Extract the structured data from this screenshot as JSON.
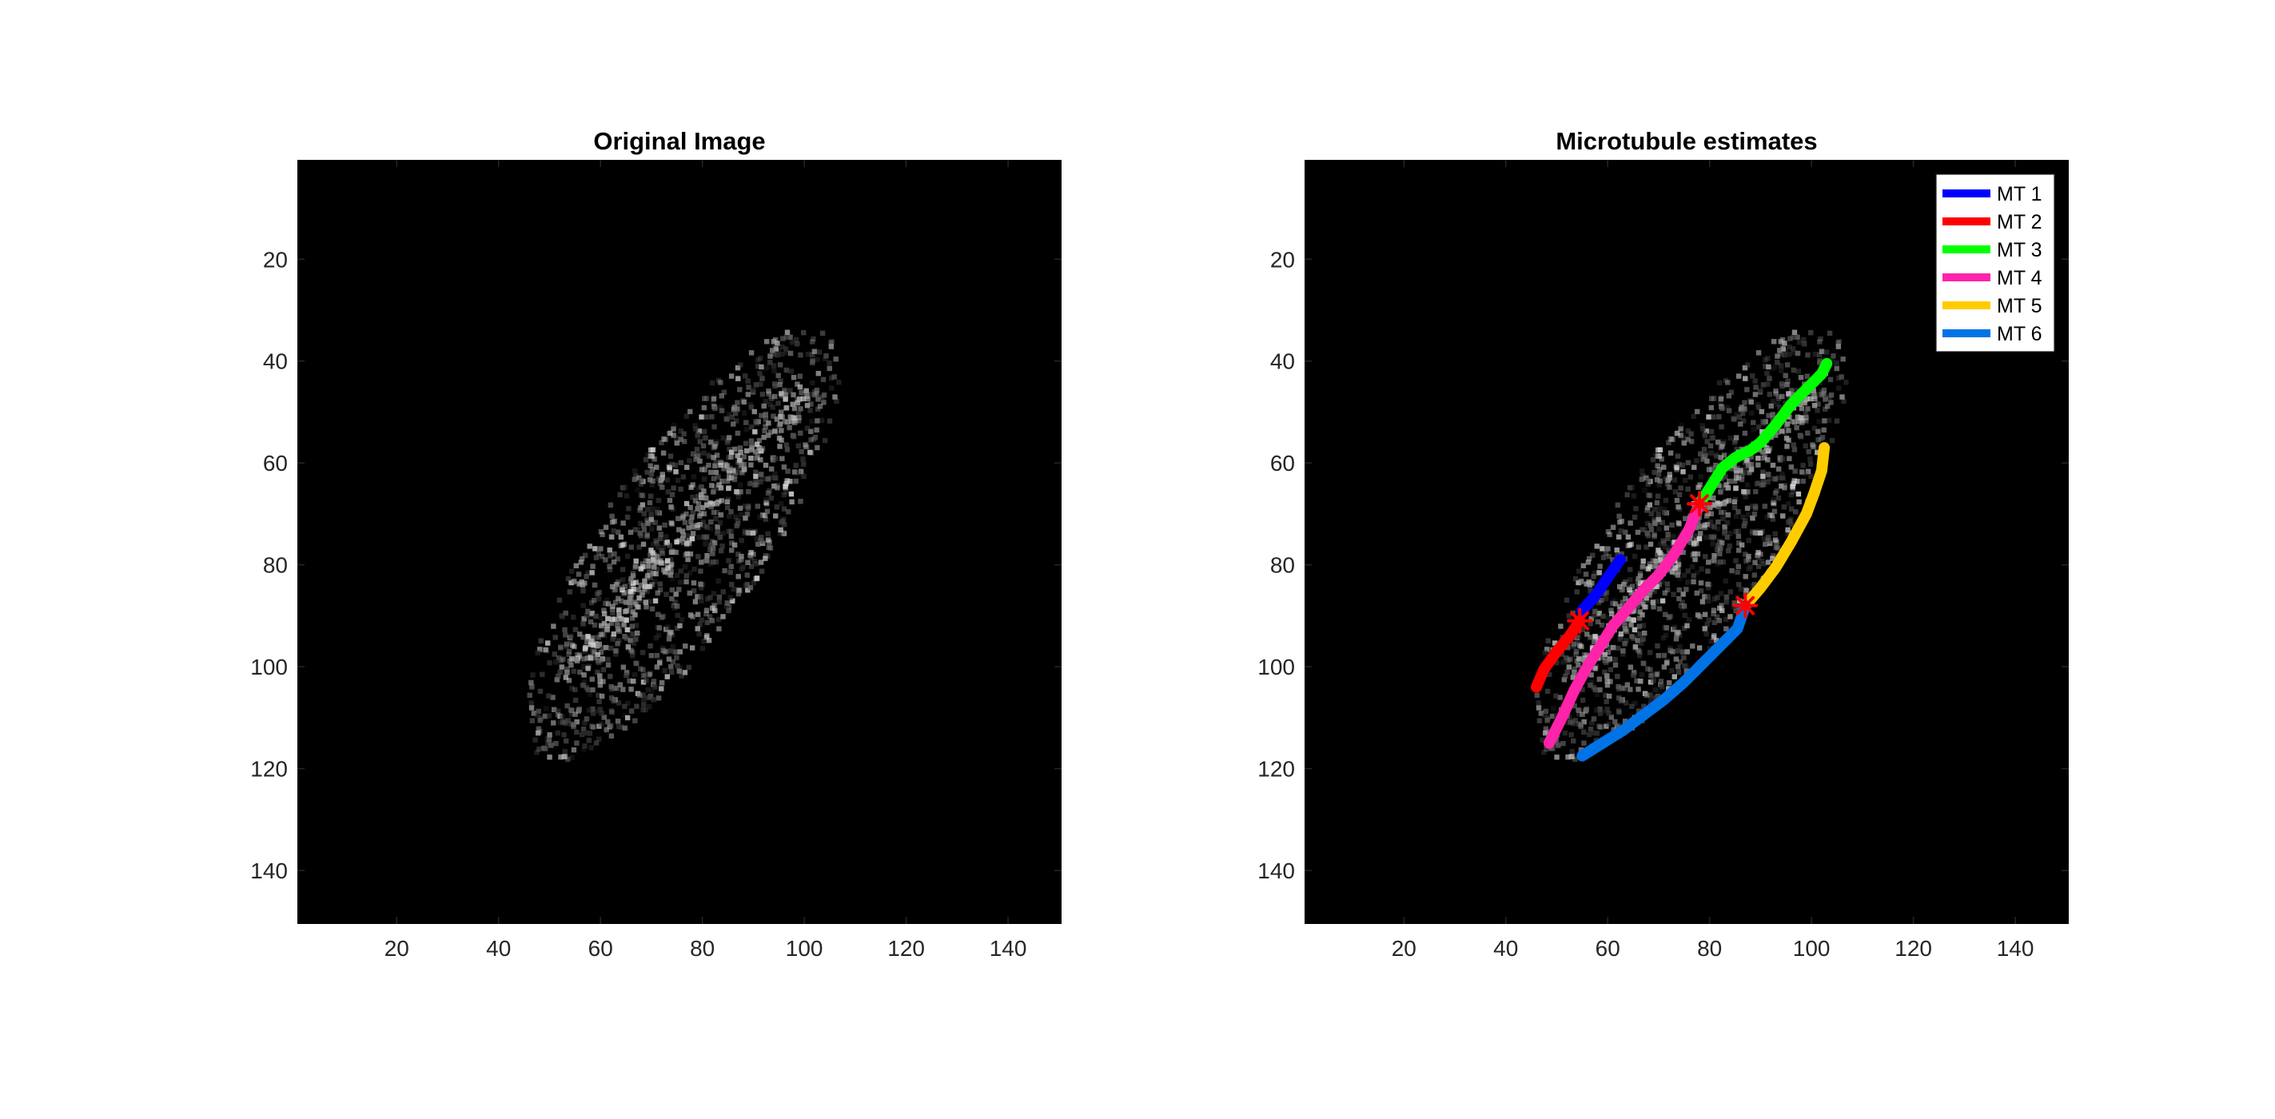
{
  "figure": {
    "background": "#ffffff"
  },
  "chart_data": [
    {
      "type": "heatmap",
      "title": "Original Image",
      "xlim": [
        0.5,
        150.5
      ],
      "ylim": [
        0.5,
        150.5
      ],
      "y_reversed": true,
      "xticks": [
        20,
        40,
        60,
        80,
        100,
        120,
        140
      ],
      "yticks": [
        20,
        40,
        60,
        80,
        100,
        120,
        140
      ],
      "colormap": "gray",
      "background": "#000000",
      "intensity_description": "noisy grayscale cell; bright elongated ellipse from ~(45,120) to ~(105,32)",
      "series": []
    },
    {
      "type": "line",
      "title": "Microtubule estimates",
      "xlim": [
        0.5,
        150.5
      ],
      "ylim": [
        0.5,
        150.5
      ],
      "y_reversed": true,
      "xticks": [
        20,
        40,
        60,
        80,
        100,
        120,
        140
      ],
      "yticks": [
        20,
        40,
        60,
        80,
        100,
        120,
        140
      ],
      "legend_position": "top-right",
      "series": [
        {
          "name": "MT 1",
          "color": "#0000ff",
          "x": [
            55,
            58,
            60,
            62.5
          ],
          "y": [
            89,
            85.5,
            82.5,
            79
          ]
        },
        {
          "name": "MT 2",
          "color": "#ff0000",
          "x": [
            46,
            47.5,
            50,
            52.5,
            54.5
          ],
          "y": [
            104,
            100.5,
            97,
            94,
            91
          ]
        },
        {
          "name": "MT 3",
          "color": "#00ff00",
          "x": [
            78,
            80,
            82.5,
            85,
            88,
            90,
            93,
            96,
            99,
            102,
            103
          ],
          "y": [
            68,
            65,
            61,
            59,
            57.5,
            56,
            52.5,
            48.5,
            45.5,
            42.5,
            40.5
          ]
        },
        {
          "name": "MT 4",
          "color": "#ff22aa",
          "x": [
            48.5,
            51,
            53.5,
            56,
            58.5,
            61,
            64,
            67,
            70,
            73,
            76,
            78
          ],
          "y": [
            115,
            110,
            104.5,
            100,
            96,
            92,
            88.5,
            85,
            82,
            78,
            73,
            68
          ]
        },
        {
          "name": "MT 5",
          "color": "#ffcc00",
          "x": [
            87,
            90,
            93,
            96,
            99,
            100.5,
            102,
            102.5
          ],
          "y": [
            88,
            84.5,
            80.5,
            75.5,
            70,
            66,
            61.5,
            57
          ]
        },
        {
          "name": "MT 6",
          "color": "#0073e6",
          "x": [
            55,
            59,
            63,
            67,
            71,
            75,
            78.5,
            82,
            85.5,
            87
          ],
          "y": [
            117.5,
            115,
            112.5,
            109.5,
            106.5,
            103,
            99.5,
            96,
            92.5,
            88
          ]
        }
      ],
      "junctions": {
        "marker": "*",
        "color": "#ff0000",
        "points": [
          [
            78,
            68
          ],
          [
            54.5,
            91
          ],
          [
            87,
            88
          ]
        ]
      }
    }
  ]
}
